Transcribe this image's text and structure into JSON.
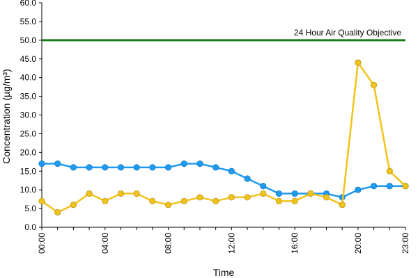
{
  "chart_data": {
    "type": "line",
    "xlabel": "Time",
    "ylabel": "Concentration (µg/m³)",
    "ylim": [
      0,
      60
    ],
    "ytick_labels": [
      "0.0",
      "5.0",
      "10.0",
      "15.0",
      "20.0",
      "25.0",
      "30.0",
      "35.0",
      "40.0",
      "45.0",
      "50.0",
      "55.0",
      "60.0"
    ],
    "x_hours": [
      0,
      1,
      2,
      3,
      4,
      5,
      6,
      7,
      8,
      9,
      10,
      11,
      12,
      13,
      14,
      15,
      16,
      17,
      18,
      19,
      20,
      21,
      22,
      23
    ],
    "xtick_labels": [
      "00:00",
      "04:00",
      "08:00",
      "12:00",
      "16:00",
      "20:00",
      "23:00"
    ],
    "xtick_hours": [
      0,
      4,
      8,
      12,
      16,
      20,
      23
    ],
    "grid": false,
    "series": [
      {
        "color": "#1f9bef",
        "values": [
          17,
          17,
          16,
          16,
          16,
          16,
          16,
          16,
          16,
          17,
          17,
          16,
          15,
          13,
          11,
          9,
          9,
          9,
          9,
          8,
          10,
          11,
          11,
          11
        ]
      },
      {
        "color": "#f2c31b",
        "values": [
          7,
          4,
          6,
          9,
          7,
          9,
          9,
          7,
          6,
          7,
          8,
          7,
          8,
          8,
          9,
          7,
          7,
          9,
          8,
          6,
          44,
          38,
          15,
          11
        ]
      }
    ],
    "reference_line": {
      "label": "24 Hour Air Quality Objective",
      "value": 50,
      "color": "#1a7a1a"
    }
  }
}
